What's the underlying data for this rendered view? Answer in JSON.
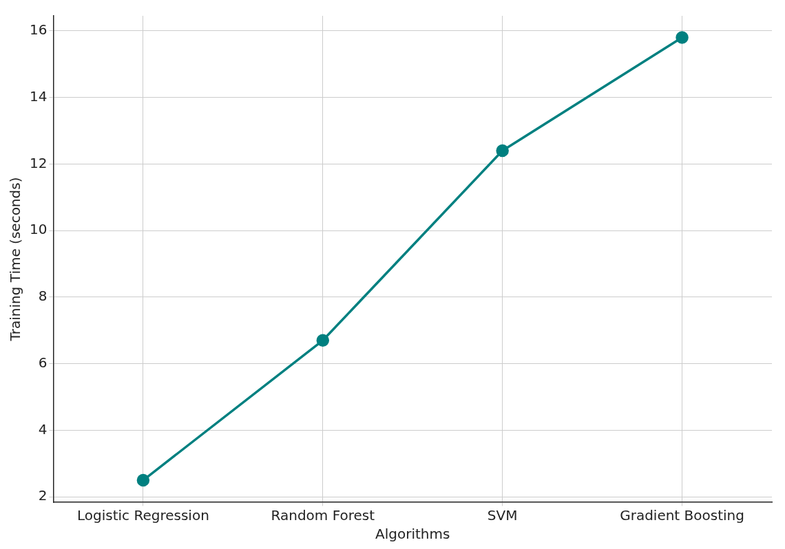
{
  "chart_data": {
    "type": "line",
    "xlabel": "Algorithms",
    "ylabel": "Training Time (seconds)",
    "categories": [
      "Logistic Regression",
      "Random Forest",
      "SVM",
      "Gradient Boosting"
    ],
    "series": [
      {
        "color": "#008080",
        "values": [
          2.5,
          6.7,
          12.4,
          15.8
        ]
      }
    ],
    "ylim": [
      1.84,
      16.45
    ],
    "yticks": [
      2,
      4,
      6,
      8,
      10,
      12,
      14,
      16
    ],
    "grid": true,
    "marker": "circle",
    "line_style": "solid"
  }
}
